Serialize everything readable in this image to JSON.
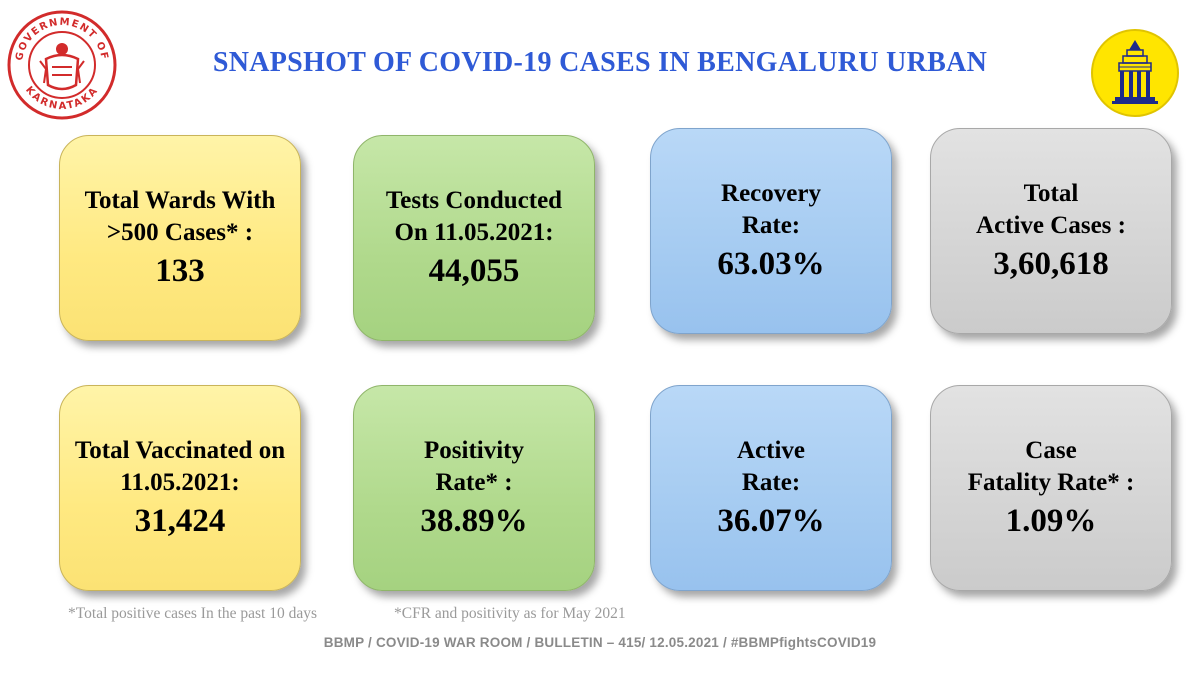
{
  "header": {
    "title": "SNAPSHOT OF COVID-19 CASES IN BENGALURU URBAN",
    "left_emblem": {
      "icon": "karnataka-government-seal-icon",
      "ring_text": "GOVERNMENT OF KARNATAKA",
      "color": "#d22b2b"
    },
    "right_emblem": {
      "icon": "bbmp-temple-logo-icon",
      "fill_color": "#ffe500",
      "accent_color": "#1e2a8a"
    }
  },
  "cards_row_1": [
    {
      "label": "Total Wards With\n>500 Cases* :",
      "value": "133",
      "color": "yellow"
    },
    {
      "label": "Tests Conducted\nOn 11.05.2021:",
      "value": "44,055",
      "color": "green"
    },
    {
      "label": "Recovery\nRate:",
      "value": "63.03%",
      "color": "blue"
    },
    {
      "label": "Total\nActive Cases :",
      "value": "3,60,618",
      "color": "grey"
    }
  ],
  "cards_row_2": [
    {
      "label": "Total Vaccinated on\n11.05.2021:",
      "value": "31,424",
      "color": "yellow"
    },
    {
      "label": "Positivity\nRate* :",
      "value": "38.89%",
      "color": "green"
    },
    {
      "label": "Active\nRate:",
      "value": "36.07%",
      "color": "blue"
    },
    {
      "label": "Case\nFatality Rate* :",
      "value": "1.09%",
      "color": "grey"
    }
  ],
  "footnotes": {
    "note_1": "*Total positive cases In the past 10 days",
    "note_2": "*CFR and positivity as for May 2021"
  },
  "bulletin": "BBMP / COVID-19 WAR ROOM / BULLETIN – 415/ 12.05.2021 / #BBMPfightsCOVID19",
  "colors": {
    "title": "#2f5ad6",
    "yellow_card": "#ffe981",
    "green_card": "#b0d98c",
    "blue_card": "#a5cbf1",
    "grey_card": "#d4d4d4"
  }
}
